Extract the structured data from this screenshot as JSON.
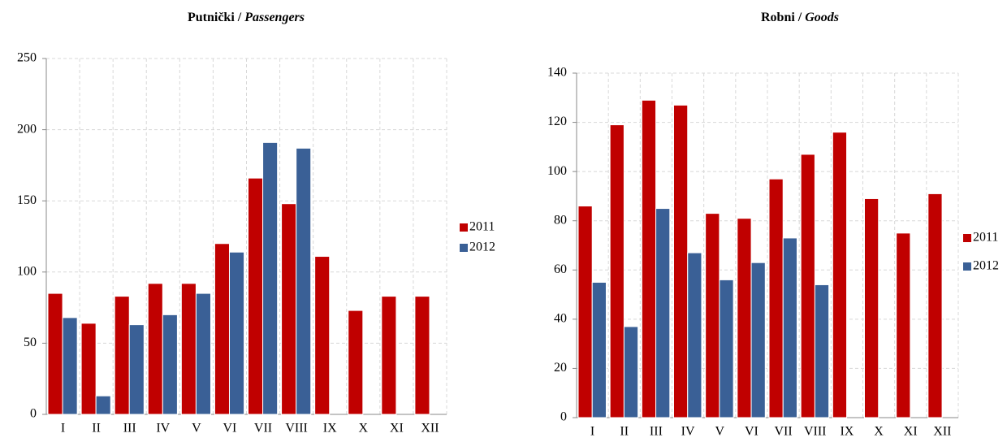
{
  "chart_data": [
    {
      "type": "bar",
      "title": [
        "Putnički /",
        "Passengers"
      ],
      "categories": [
        "I",
        "II",
        "III",
        "IV",
        "V",
        "VI",
        "VII",
        "VIII",
        "IX",
        "X",
        "XI",
        "XII"
      ],
      "series": [
        {
          "name": "2011",
          "color": "#c00000",
          "values": [
            85,
            64,
            83,
            92,
            92,
            120,
            166,
            148,
            111,
            73,
            83,
            83
          ]
        },
        {
          "name": "2012",
          "color": "#3a6096",
          "values": [
            68,
            13,
            63,
            70,
            85,
            114,
            191,
            187,
            null,
            null,
            null,
            null
          ]
        }
      ],
      "ylim": [
        0,
        250
      ],
      "yticks": [
        0,
        50,
        100,
        150,
        200,
        250
      ],
      "grid": true,
      "legend": "right"
    },
    {
      "type": "bar",
      "title": [
        "Robni /",
        "Goods"
      ],
      "categories": [
        "I",
        "II",
        "III",
        "IV",
        "V",
        "VI",
        "VII",
        "VIII",
        "IX",
        "X",
        "XI",
        "XII"
      ],
      "series": [
        {
          "name": "2011",
          "color": "#c00000",
          "values": [
            86,
            119,
            129,
            127,
            83,
            81,
            97,
            107,
            116,
            89,
            75,
            91
          ]
        },
        {
          "name": "2012",
          "color": "#3a6096",
          "values": [
            55,
            37,
            85,
            67,
            56,
            63,
            73,
            54,
            null,
            null,
            null,
            null
          ]
        }
      ],
      "ylim": [
        0,
        140
      ],
      "yticks": [
        0,
        20,
        40,
        60,
        80,
        100,
        120,
        140
      ],
      "grid": true,
      "legend": "right"
    }
  ]
}
